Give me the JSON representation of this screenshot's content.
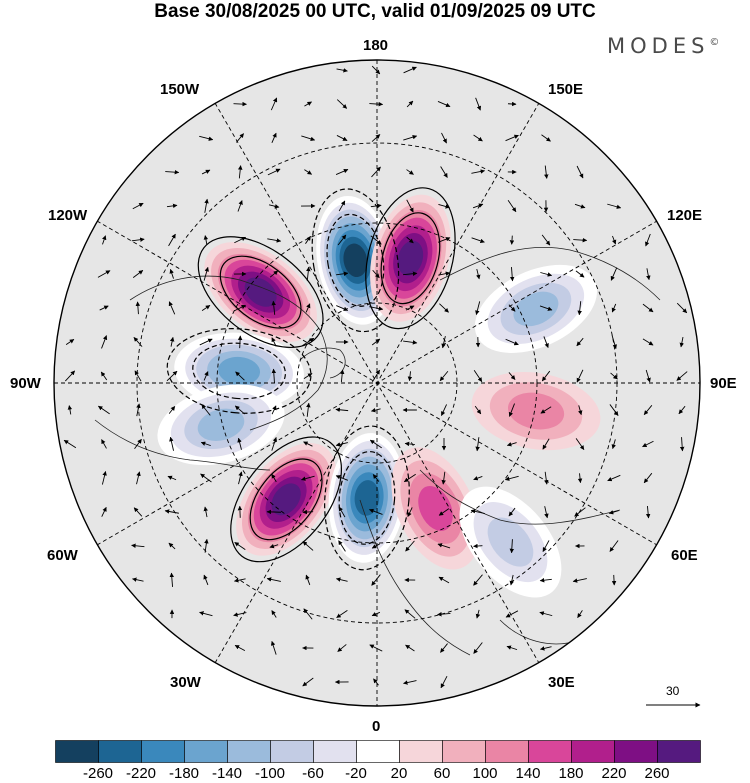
{
  "title": "Base 30/08/2025 00 UTC, valid 01/09/2025 09 UTC",
  "brand": "MODES",
  "brand_mark": "©",
  "lon_labels": {
    "top": "180",
    "bottom": "0",
    "left": "90W",
    "right": "90E",
    "upper_left_a": "150W",
    "upper_left_b": "120W",
    "upper_right_a": "150E",
    "upper_right_b": "120E",
    "lower_left_a": "60W",
    "lower_left_b": "30W",
    "lower_right_a": "60E",
    "lower_right_b": "30E"
  },
  "reference_vector": {
    "value": "30"
  },
  "colorbar": {
    "colors": [
      "#14405f",
      "#1d6593",
      "#3a88bc",
      "#6ba4cf",
      "#9bbbdc",
      "#c3cce4",
      "#e2e1ef",
      "#ffffff",
      "#f6d6da",
      "#f1b0bd",
      "#ea85a5",
      "#d9469a",
      "#b11f8c",
      "#7e0f84",
      "#551a7f"
    ],
    "ticks": [
      "-260",
      "-220",
      "-180",
      "-140",
      "-100",
      "-60",
      "-20",
      "20",
      "60",
      "100",
      "140",
      "180",
      "220",
      "260"
    ]
  },
  "anomaly_blobs": [
    {
      "sign": "neg",
      "value": -260,
      "lat": 63,
      "lon": -170
    },
    {
      "sign": "pos",
      "value": 240,
      "lat": 62,
      "lon": 165
    },
    {
      "sign": "pos",
      "value": 220,
      "lat": 58,
      "lon": -128
    },
    {
      "sign": "neg",
      "value": -160,
      "lat": 60,
      "lon": -95
    },
    {
      "sign": "neg",
      "value": -100,
      "lat": 55,
      "lon": -75
    },
    {
      "sign": "pos",
      "value": 240,
      "lat": 58,
      "lon": -38
    },
    {
      "sign": "neg",
      "value": -240,
      "lat": 65,
      "lon": -5
    },
    {
      "sign": "pos",
      "value": 120,
      "lat": 60,
      "lon": 25
    },
    {
      "sign": "neg",
      "value": -120,
      "lat": 52,
      "lon": 115
    },
    {
      "sign": "pos",
      "value": 60,
      "lat": 55,
      "lon": 80
    },
    {
      "sign": "neg",
      "value": -60,
      "lat": 45,
      "lon": 40
    }
  ]
}
